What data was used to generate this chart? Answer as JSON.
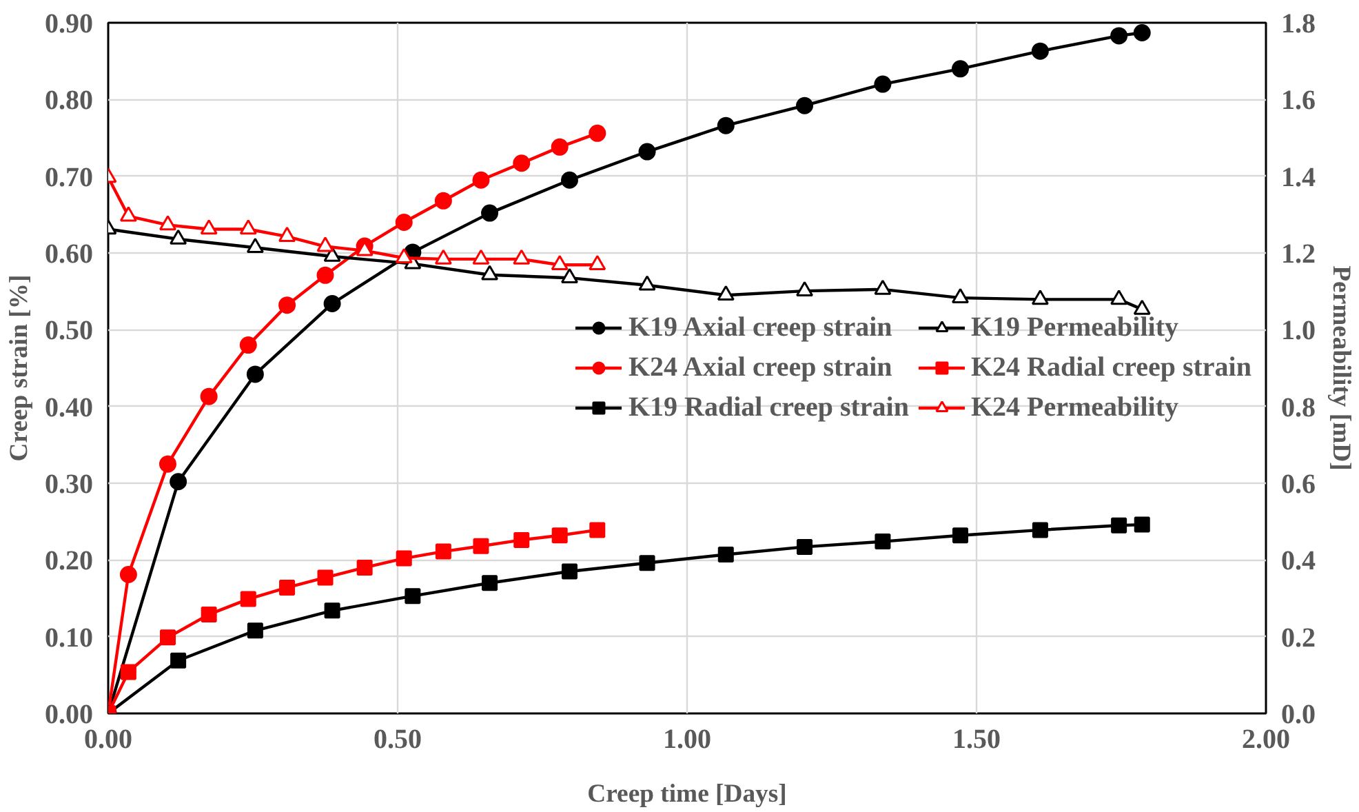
{
  "chart_data": {
    "type": "line",
    "xlabel": "Creep time [Days]",
    "ylabel": "Creep strain [%]",
    "y2label": "Permeability [mD]",
    "xlim": [
      0,
      2
    ],
    "xticks": [
      {
        "value": 0,
        "label": "0.00"
      },
      {
        "value": 0.5,
        "label": "0.50"
      },
      {
        "value": 1,
        "label": "1.00"
      },
      {
        "value": 1.5,
        "label": "1.50"
      },
      {
        "value": 2,
        "label": "2.00"
      }
    ],
    "ylim": [
      0,
      0.9
    ],
    "yticks": [
      {
        "value": 0,
        "label": "0.00"
      },
      {
        "value": 0.1,
        "label": "0.10"
      },
      {
        "value": 0.2,
        "label": "0.20"
      },
      {
        "value": 0.3,
        "label": "0.30"
      },
      {
        "value": 0.4,
        "label": "0.40"
      },
      {
        "value": 0.5,
        "label": "0.50"
      },
      {
        "value": 0.6,
        "label": "0.60"
      },
      {
        "value": 0.7,
        "label": "0.70"
      },
      {
        "value": 0.8,
        "label": "0.80"
      },
      {
        "value": 0.9,
        "label": "0.90"
      }
    ],
    "y2lim": [
      0,
      1.8
    ],
    "y2ticks": [
      {
        "value": 0,
        "label": "0.0"
      },
      {
        "value": 0.2,
        "label": "0.2"
      },
      {
        "value": 0.4,
        "label": "0.4"
      },
      {
        "value": 0.6,
        "label": "0.6"
      },
      {
        "value": 0.8,
        "label": "0.8"
      },
      {
        "value": 1.0,
        "label": "1.0"
      },
      {
        "value": 1.2,
        "label": "1.2"
      },
      {
        "value": 1.4,
        "label": "1.4"
      },
      {
        "value": 1.6,
        "label": "1.6"
      },
      {
        "value": 1.8,
        "label": "1.8"
      }
    ],
    "grid": true,
    "legend": "right",
    "series": [
      {
        "name": "K19 Axial creep strain",
        "color": "#000000",
        "marker": "circle",
        "x": [
          0,
          0.121,
          0.254,
          0.387,
          0.526,
          0.659,
          0.797,
          0.931,
          1.067,
          1.203,
          1.338,
          1.472,
          1.61,
          1.746,
          1.786
        ],
        "values": [
          0,
          0.302,
          0.442,
          0.534,
          0.601,
          0.652,
          0.695,
          0.732,
          0.766,
          0.792,
          0.82,
          0.84,
          0.863,
          0.883,
          0.887
        ]
      },
      {
        "name": "K24 Axial creep strain",
        "color": "#ff0000",
        "marker": "circle",
        "x": [
          0,
          0.035,
          0.103,
          0.174,
          0.242,
          0.309,
          0.375,
          0.443,
          0.511,
          0.579,
          0.644,
          0.714,
          0.78,
          0.845
        ],
        "values": [
          0,
          0.181,
          0.325,
          0.413,
          0.48,
          0.532,
          0.571,
          0.609,
          0.64,
          0.668,
          0.695,
          0.717,
          0.738,
          0.756
        ]
      },
      {
        "name": "K19 Radial creep strain",
        "color": "#000000",
        "marker": "square",
        "x": [
          0,
          0.121,
          0.254,
          0.387,
          0.526,
          0.659,
          0.797,
          0.931,
          1.067,
          1.203,
          1.338,
          1.472,
          1.61,
          1.746,
          1.786
        ],
        "values": [
          0,
          0.069,
          0.108,
          0.134,
          0.153,
          0.17,
          0.185,
          0.196,
          0.207,
          0.217,
          0.224,
          0.232,
          0.239,
          0.245,
          0.246
        ]
      },
      {
        "name": "K19 Permeability",
        "color": "#000000",
        "marker": "triangle",
        "axis": "y2",
        "x": [
          0,
          0.121,
          0.254,
          0.387,
          0.526,
          0.659,
          0.797,
          0.931,
          1.067,
          1.203,
          1.338,
          1.472,
          1.61,
          1.746,
          1.786
        ],
        "values": [
          1.262,
          1.236,
          1.214,
          1.191,
          1.172,
          1.143,
          1.135,
          1.116,
          1.09,
          1.101,
          1.105,
          1.083,
          1.079,
          1.079,
          1.053
        ]
      },
      {
        "name": "K24 Radial creep strain",
        "color": "#ff0000",
        "marker": "square",
        "x": [
          0,
          0.035,
          0.103,
          0.174,
          0.242,
          0.309,
          0.375,
          0.443,
          0.511,
          0.579,
          0.644,
          0.714,
          0.78,
          0.845
        ],
        "values": [
          0,
          0.054,
          0.099,
          0.129,
          0.149,
          0.164,
          0.177,
          0.19,
          0.202,
          0.211,
          0.218,
          0.226,
          0.232,
          0.239
        ]
      },
      {
        "name": "K24 Permeability",
        "color": "#ff0000",
        "marker": "triangle",
        "axis": "y2",
        "x": [
          0,
          0.035,
          0.103,
          0.174,
          0.242,
          0.309,
          0.375,
          0.443,
          0.511,
          0.579,
          0.644,
          0.714,
          0.78,
          0.845
        ],
        "values": [
          1.397,
          1.296,
          1.273,
          1.262,
          1.262,
          1.243,
          1.217,
          1.206,
          1.187,
          1.184,
          1.184,
          1.184,
          1.169,
          1.169
        ]
      }
    ]
  }
}
